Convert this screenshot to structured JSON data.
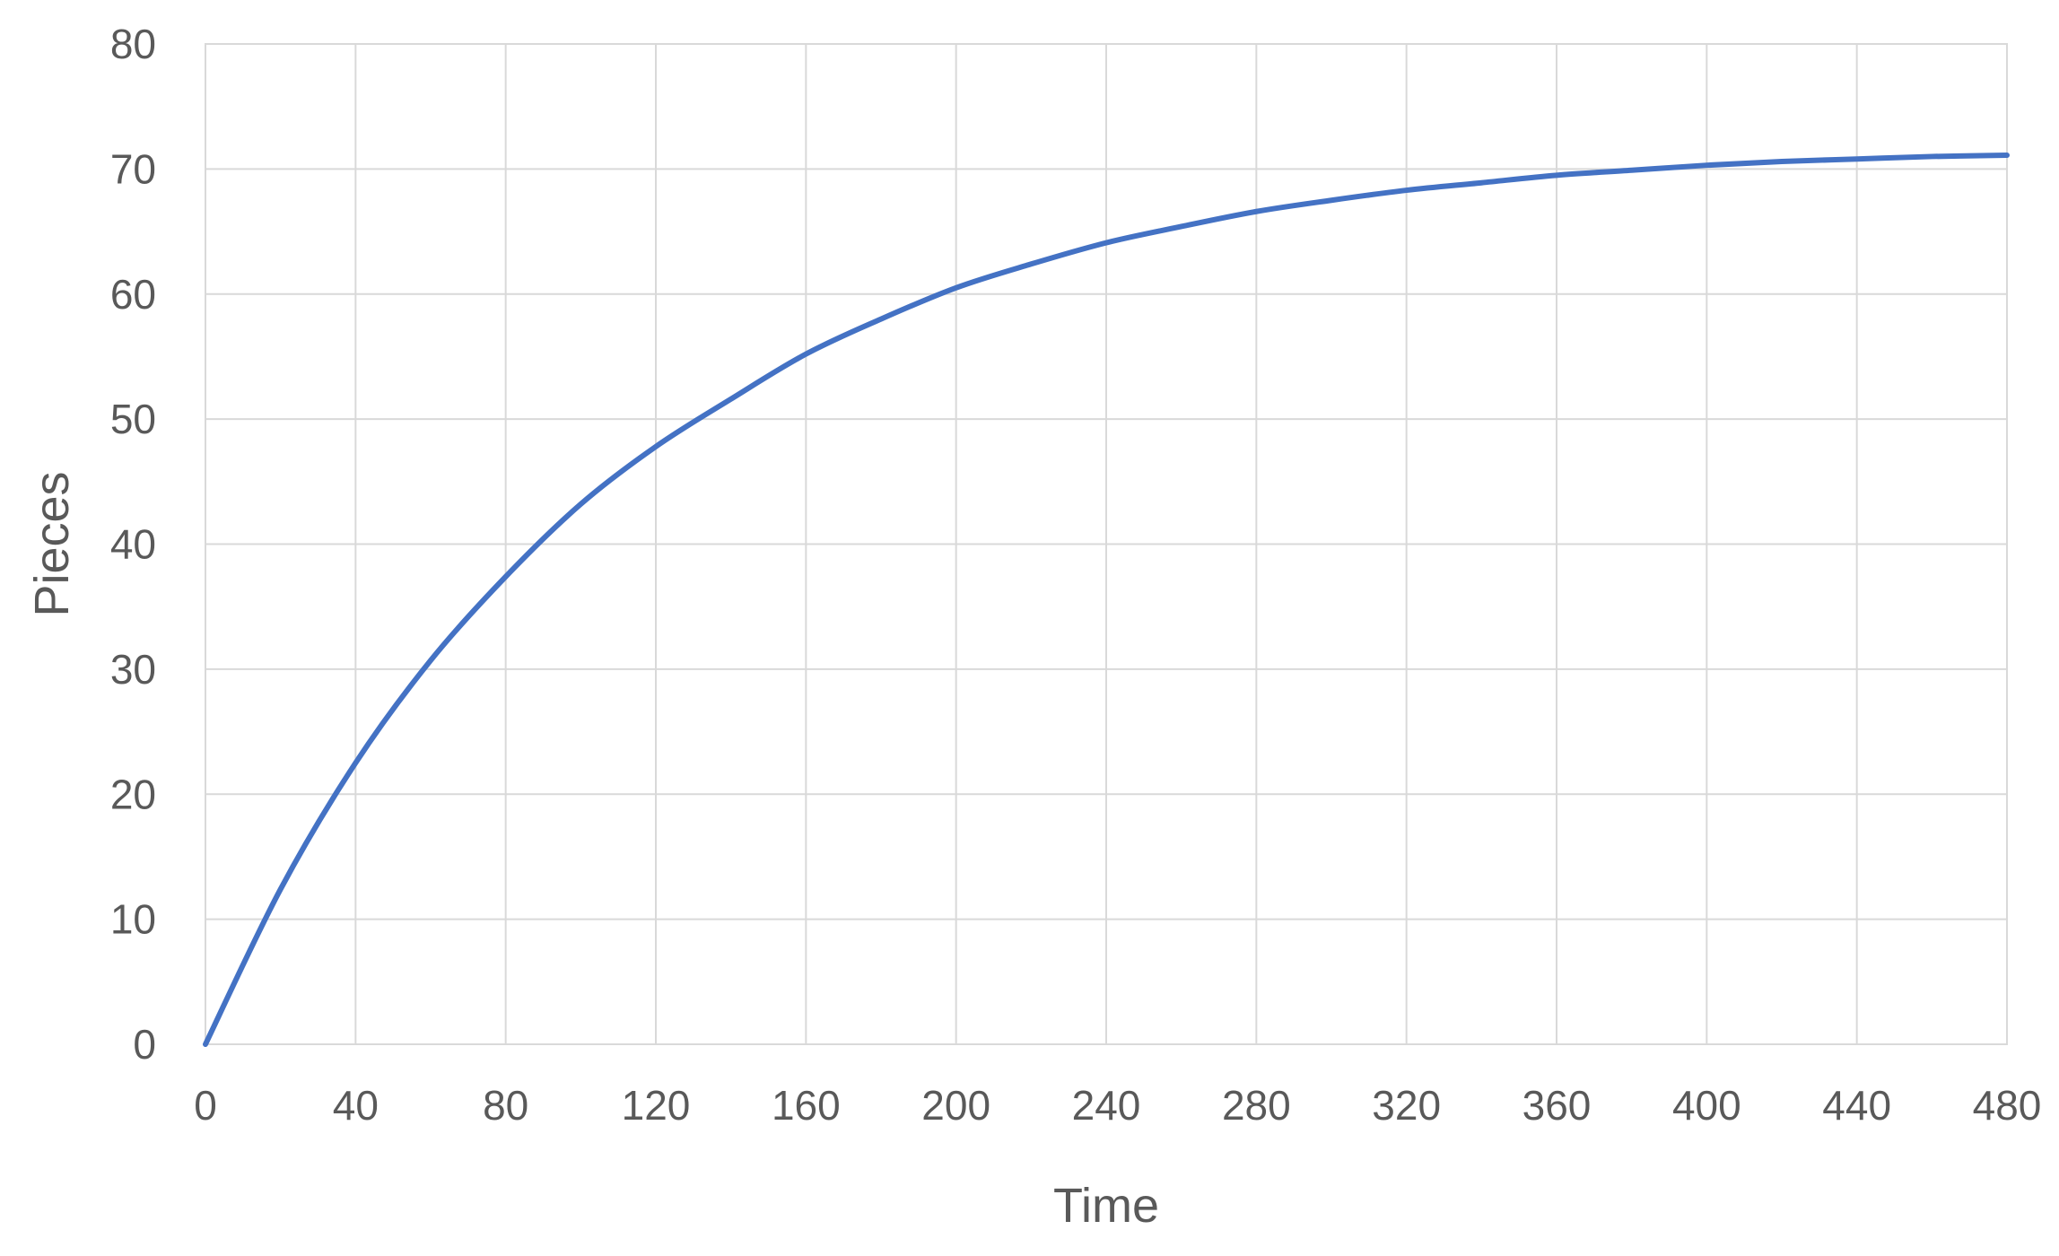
{
  "chart_data": {
    "type": "line",
    "title": "",
    "xlabel": "Time",
    "ylabel": "Pieces",
    "xlim": [
      0,
      480
    ],
    "ylim": [
      0,
      80
    ],
    "x_ticks": [
      0,
      40,
      80,
      120,
      160,
      200,
      240,
      280,
      320,
      360,
      400,
      440,
      480
    ],
    "y_ticks": [
      0,
      10,
      20,
      30,
      40,
      50,
      60,
      70,
      80
    ],
    "grid": true,
    "legend": "none",
    "line_color": "#4472c4",
    "series": [
      {
        "x": [
          0,
          20,
          40,
          60,
          80,
          100,
          120,
          140,
          160,
          180,
          200,
          220,
          240,
          260,
          280,
          300,
          320,
          340,
          360,
          380,
          400,
          420,
          440,
          460,
          480
        ],
        "values": [
          0,
          12.4,
          22.5,
          30.7,
          37.4,
          43.2,
          47.8,
          51.6,
          55.2,
          58.0,
          60.5,
          62.4,
          64.1,
          65.4,
          66.6,
          67.5,
          68.3,
          68.9,
          69.5,
          69.9,
          70.3,
          70.6,
          70.8,
          71.0,
          71.1
        ]
      }
    ]
  }
}
